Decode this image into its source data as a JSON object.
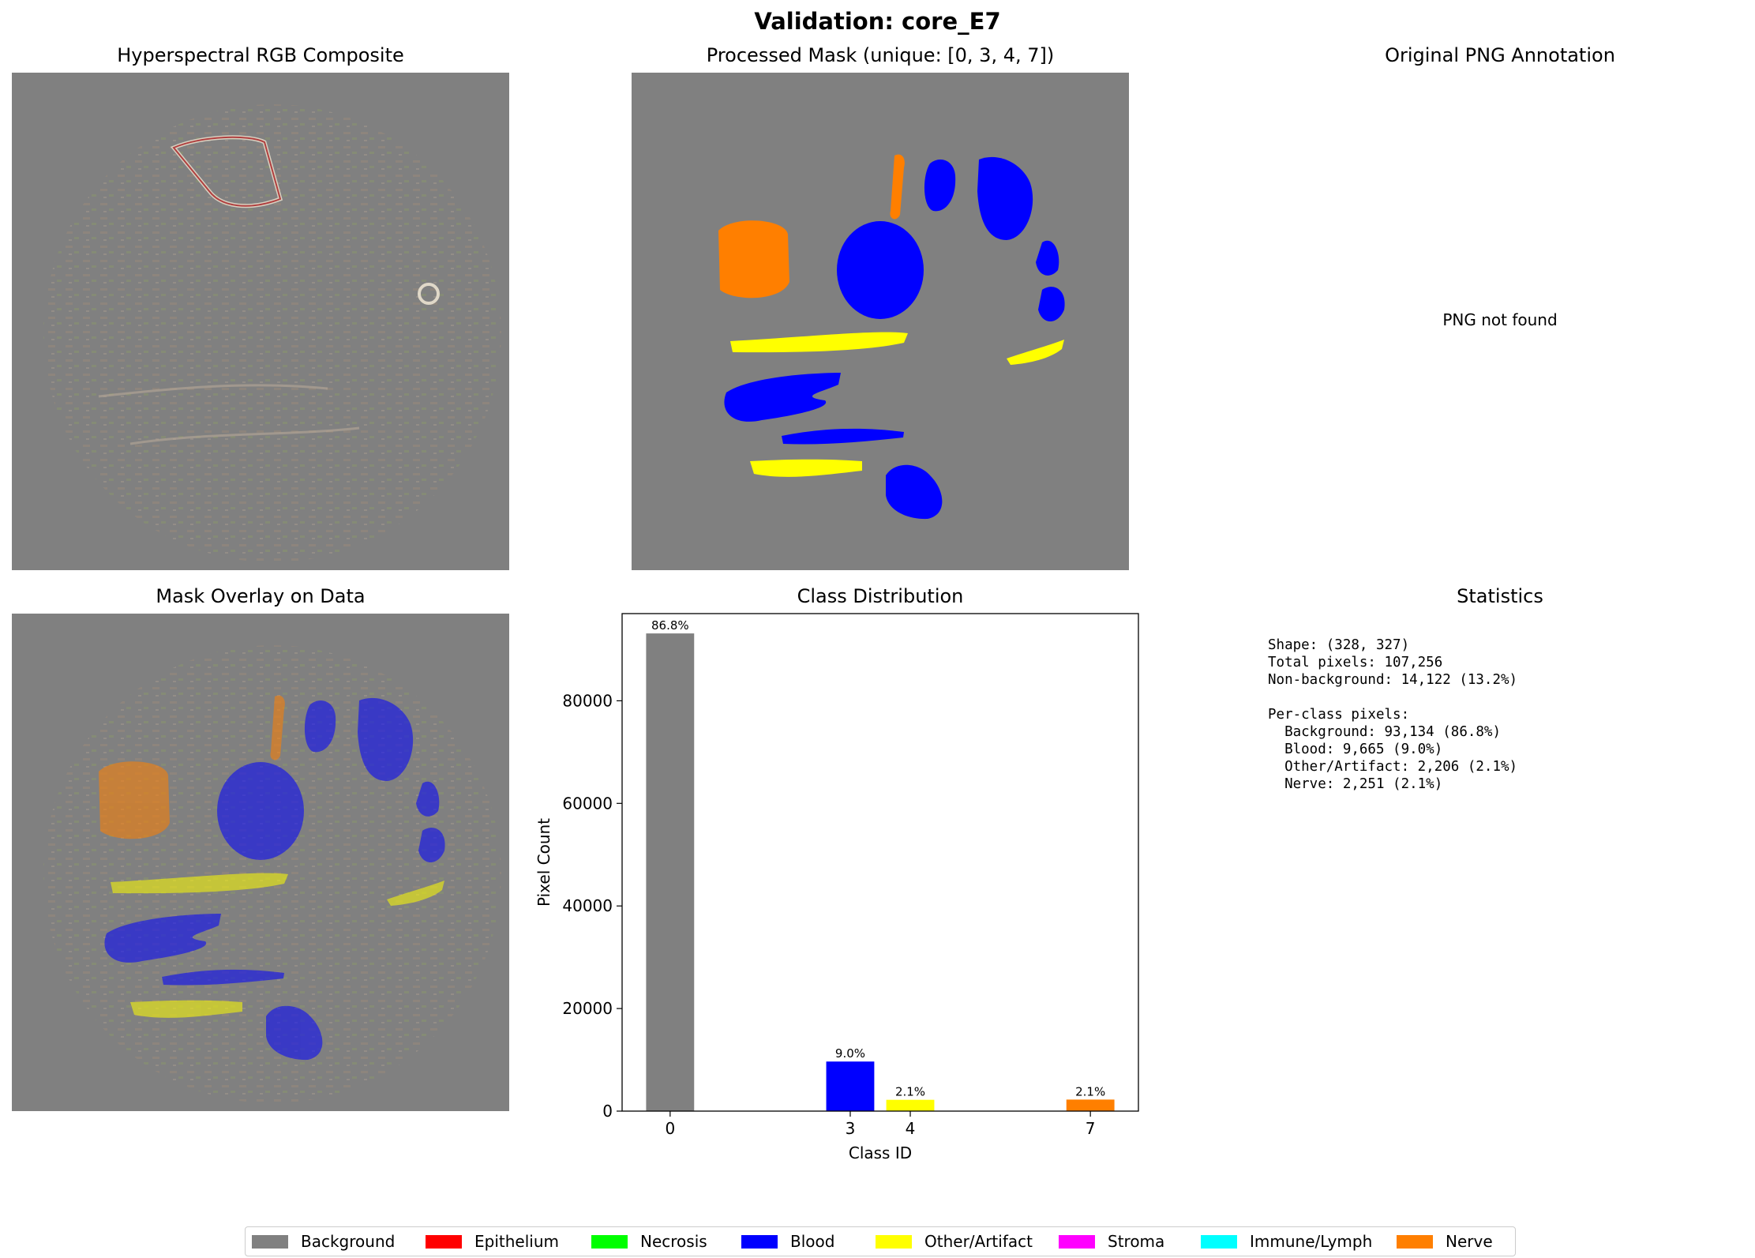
{
  "figure": {
    "title": "Validation: core_E7"
  },
  "panels": {
    "rgb": {
      "title": "Hyperspectral RGB Composite"
    },
    "mask": {
      "title": "Processed Mask (unique: [0, 3, 4, 7])"
    },
    "png": {
      "title": "Original PNG Annotation",
      "message": "PNG not found"
    },
    "overlay": {
      "title": "Mask Overlay on Data"
    },
    "stats": {
      "title": "Statistics",
      "lines": [
        "Shape: (328, 327)",
        "Total pixels: 107,256",
        "Non-background: 14,122 (13.2%)",
        "",
        "Per-class pixels:",
        "  Background: 93,134 (86.8%)",
        "  Blood: 9,665 (9.0%)",
        "  Other/Artifact: 2,206 (2.1%)",
        "  Nerve: 2,251 (2.1%)"
      ]
    }
  },
  "chart_data": {
    "type": "bar",
    "title": "Class Distribution",
    "xlabel": "Class ID",
    "ylabel": "Pixel Count",
    "xlim": [
      -0.8,
      7.8
    ],
    "ylim": [
      0,
      97000
    ],
    "xticks": [
      0,
      3,
      4,
      7
    ],
    "yticks": [
      0,
      20000,
      40000,
      60000,
      80000
    ],
    "bars": [
      {
        "x": 0,
        "value": 93134,
        "label": "86.8%",
        "color": "#808080"
      },
      {
        "x": 3,
        "value": 9665,
        "label": "9.0%",
        "color": "#0000ff"
      },
      {
        "x": 4,
        "value": 2206,
        "label": "2.1%",
        "color": "#ffff00"
      },
      {
        "x": 7,
        "value": 2251,
        "label": "2.1%",
        "color": "#ff7f00"
      }
    ]
  },
  "legend": [
    {
      "label": "Background",
      "color": "#808080"
    },
    {
      "label": "Epithelium",
      "color": "#ff0000"
    },
    {
      "label": "Necrosis",
      "color": "#00ff00"
    },
    {
      "label": "Blood",
      "color": "#0000ff"
    },
    {
      "label": "Other/Artifact",
      "color": "#ffff00"
    },
    {
      "label": "Stroma",
      "color": "#ff00ff"
    },
    {
      "label": "Immune/Lymph",
      "color": "#00ffff"
    },
    {
      "label": "Nerve",
      "color": "#ff7f00"
    }
  ]
}
